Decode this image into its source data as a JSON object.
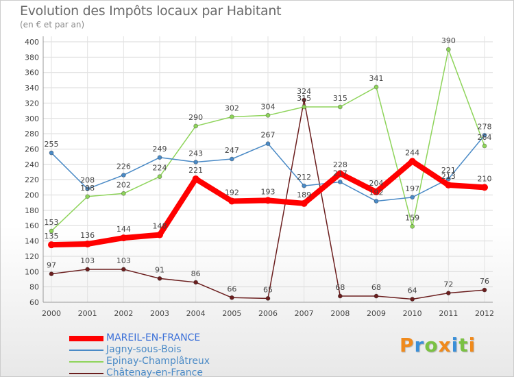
{
  "header": {
    "title": "Evolution des Impôts locaux par Habitant",
    "subtitle": "(en € et par an)"
  },
  "logo": {
    "text": "Proxiti",
    "letter_colors": [
      "#f08a1c",
      "#3a8fd8",
      "#7ac143",
      "#f08a1c",
      "#3a8fd8",
      "#7ac143",
      "#f08a1c"
    ]
  },
  "chart_data": {
    "type": "line",
    "title": "Evolution des Impôts locaux par Habitant",
    "subtitle": "(en € et par an)",
    "x": [
      "2000",
      "2001",
      "2002",
      "2003",
      "2004",
      "2005",
      "2006",
      "2007",
      "2008",
      "2009",
      "2010",
      "2011",
      "2012"
    ],
    "ylim": [
      60,
      400
    ],
    "yticks": [
      "60",
      "80",
      "100",
      "120",
      "140",
      "160",
      "180",
      "200",
      "220",
      "240",
      "260",
      "280",
      "300",
      "320",
      "340",
      "360",
      "380",
      "400"
    ],
    "grid": true,
    "legend_position": "bottom-left",
    "series": [
      {
        "name": "MAREIL-EN-FRANCE",
        "color": "#ff0000",
        "values": [
          135,
          136,
          144,
          148,
          221,
          192,
          193,
          189,
          228,
          204,
          244,
          213,
          210
        ],
        "labels": [
          "135",
          "136",
          "144",
          "148",
          "221",
          "192",
          "193",
          "189",
          "228",
          "204",
          "244",
          "213",
          "210"
        ]
      },
      {
        "name": "Jagny-sous-Bois",
        "color": "#4a8ac6",
        "values": [
          255,
          208,
          226,
          249,
          243,
          247,
          267,
          212,
          217,
          192,
          197,
          221,
          278
        ],
        "labels": [
          "255",
          "208",
          "226",
          "249",
          "243",
          "247",
          "267",
          "212",
          "217",
          "192",
          "197",
          "221",
          "278"
        ]
      },
      {
        "name": "Epinay-Champlâtreux",
        "color": "#8ed45a",
        "values": [
          153,
          198,
          202,
          224,
          290,
          302,
          304,
          315,
          315,
          341,
          159,
          390,
          264
        ],
        "labels": [
          "153",
          "198",
          "202",
          "224",
          "290",
          "302",
          "304",
          "315",
          "315",
          "341",
          "159",
          "390",
          "264"
        ]
      },
      {
        "name": "Châtenay-en-France",
        "color": "#6b1e1e",
        "values": [
          97,
          103,
          103,
          91,
          86,
          66,
          65,
          324,
          68,
          68,
          64,
          72,
          76
        ],
        "labels": [
          "97",
          "103",
          "103",
          "91",
          "86",
          "66",
          "65",
          "324",
          "68",
          "68",
          "64",
          "72",
          "76"
        ]
      }
    ]
  }
}
